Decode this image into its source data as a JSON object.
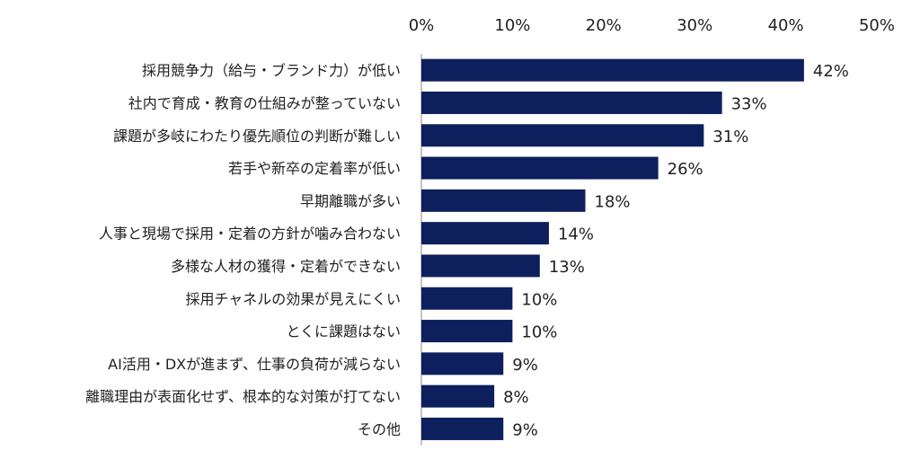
{
  "chart_data": {
    "type": "bar",
    "orientation": "horizontal",
    "categories": [
      "採用競争力（給与・ブランド力）が低い",
      "社内で育成・教育の仕組みが整っていない",
      "課題が多岐にわたり優先順位の判断が難しい",
      "若手や新卒の定着率が低い",
      "早期離職が多い",
      "人事と現場で採用・定着の方針が噛み合わない",
      "多様な人材の獲得・定着ができない",
      "採用チャネルの効果が見えにくい",
      "とくに課題はない",
      "AI活用・DXが進まず、仕事の負荷が減らない",
      "離職理由が表面化せず、根本的な対策が打てない",
      "その他"
    ],
    "values": [
      42,
      33,
      31,
      26,
      18,
      14,
      13,
      10,
      10,
      9,
      8,
      9
    ],
    "value_labels": [
      "42%",
      "33%",
      "31%",
      "26%",
      "18%",
      "14%",
      "13%",
      "10%",
      "10%",
      "9%",
      "8%",
      "9%"
    ],
    "xlim": [
      0,
      50
    ],
    "x_ticks": [
      0,
      10,
      20,
      30,
      40,
      50
    ],
    "x_tick_labels": [
      "0%",
      "10%",
      "20%",
      "30%",
      "40%",
      "50%"
    ],
    "axis_position": "top",
    "grid": false,
    "legend": "none",
    "bar_color": "#0d1f5c",
    "baseline_color": "#888888",
    "title": "",
    "xlabel": "",
    "ylabel": ""
  }
}
